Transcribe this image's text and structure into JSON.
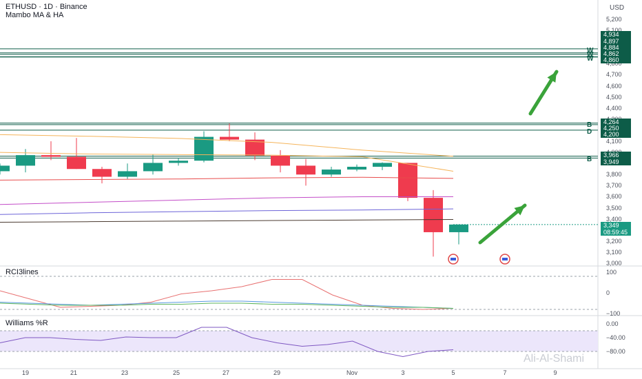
{
  "header": {
    "symbol_line": "ETHUSD · 1D · Binance",
    "indicator": "Mambo MA & HA",
    "currency": "USD"
  },
  "price_labels": [
    "5,200",
    "5,100",
    "5,000",
    "4,900",
    "4,800",
    "4,700",
    "4,600",
    "4,500",
    "4,400",
    "4,300",
    "4,100",
    "4,000",
    "3,800",
    "3,700",
    "3,600",
    "3,500",
    "3,400",
    "3,200",
    "3,100",
    "3,000"
  ],
  "level_tags": [
    "4,934",
    "4,897",
    "4,884",
    "4,862",
    "4,860",
    "4,264",
    "4,250",
    "4,200",
    "3,966",
    "3,949"
  ],
  "level_letters": [
    "W",
    "W",
    "W",
    "B",
    "D",
    "B"
  ],
  "current": {
    "price": "3,349",
    "countdown": "08:59:45"
  },
  "x_labels": [
    "19",
    "21",
    "23",
    "25",
    "27",
    "29",
    "Nov",
    "3",
    "5",
    "7",
    "9"
  ],
  "pane_titles": {
    "rci": "RCI3lines",
    "williams": "Williams %R"
  },
  "rci_labels": [
    "100",
    "0",
    "−100"
  ],
  "williams_labels": [
    "0.00",
    "−40.00",
    "−80.00"
  ],
  "watermark": "Ali-Al-Shami",
  "colors": {
    "up": "#1a9a82",
    "down": "#ef3b4e",
    "levels": "#0d5c48",
    "arrow": "#3aa33a"
  },
  "chart_data": {
    "type": "candlestick",
    "x": [
      "Oct 18",
      "Oct 19",
      "Oct 20",
      "Oct 21",
      "Oct 22",
      "Oct 23",
      "Oct 24",
      "Oct 25",
      "Oct 26",
      "Oct 27",
      "Oct 28",
      "Oct 29",
      "Oct 30",
      "Oct 31",
      "Nov 1",
      "Nov 2",
      "Nov 3",
      "Nov 4",
      "Nov 5"
    ],
    "ohlc": [
      [
        3830,
        3900,
        3800,
        3880
      ],
      [
        3880,
        4030,
        3820,
        3975
      ],
      [
        3975,
        4100,
        3930,
        3960
      ],
      [
        3960,
        4130,
        3850,
        3850
      ],
      [
        3850,
        3870,
        3720,
        3780
      ],
      [
        3780,
        3900,
        3760,
        3830
      ],
      [
        3830,
        3980,
        3800,
        3905
      ],
      [
        3905,
        3950,
        3880,
        3925
      ],
      [
        3925,
        4190,
        3910,
        4140
      ],
      [
        4140,
        4260,
        4100,
        4115
      ],
      [
        4115,
        4180,
        3930,
        3970
      ],
      [
        3970,
        4020,
        3820,
        3880
      ],
      [
        3880,
        3940,
        3700,
        3800
      ],
      [
        3800,
        3870,
        3780,
        3845
      ],
      [
        3845,
        3890,
        3830,
        3870
      ],
      [
        3870,
        3910,
        3840,
        3905
      ],
      [
        3905,
        3905,
        3560,
        3590
      ],
      [
        3590,
        3660,
        3060,
        3280
      ],
      [
        3280,
        3350,
        3170,
        3349
      ]
    ],
    "moving_averages": [
      {
        "color": "#f5b45a",
        "values": [
          4160,
          4145,
          4125,
          4090,
          4020,
          3965
        ]
      },
      {
        "color": "#f5b45a",
        "values": [
          4000,
          3985,
          3980,
          3975,
          3960,
          3830
        ]
      },
      {
        "color": "#e84c4c",
        "values": [
          3750,
          3755,
          3760,
          3770,
          3775,
          3765
        ]
      },
      {
        "color": "#c34cc8",
        "values": [
          3530,
          3550,
          3570,
          3590,
          3600,
          3600
        ]
      },
      {
        "color": "#6c63d8",
        "values": [
          3440,
          3455,
          3465,
          3475,
          3480,
          3490
        ]
      },
      {
        "color": "#4a3a30",
        "values": [
          3370,
          3375,
          3380,
          3385,
          3390,
          3395
        ]
      }
    ],
    "rci": {
      "range": [
        -100,
        100
      ],
      "lines": [
        {
          "color": "#e87070",
          "values": [
            10,
            -30,
            -70,
            -65,
            -60,
            -45,
            -5,
            10,
            30,
            65,
            65,
            -10,
            -60,
            -75,
            -80,
            -75
          ]
        },
        {
          "color": "#5a9ae0",
          "values": [
            -45,
            -50,
            -55,
            -60,
            -55,
            -50,
            -45,
            -40,
            -40,
            -45,
            -50,
            -55,
            -60,
            -65,
            -70,
            -75
          ]
        },
        {
          "color": "#5bb35b",
          "values": [
            -50,
            -55,
            -60,
            -60,
            -60,
            -55,
            -55,
            -50,
            -50,
            -55,
            -55,
            -60,
            -65,
            -70,
            -70,
            -75
          ]
        }
      ]
    },
    "williams": {
      "range": [
        -100,
        0
      ],
      "values": [
        -55,
        -40,
        -40,
        -45,
        -48,
        -38,
        -40,
        -40,
        -10,
        -10,
        -40,
        -55,
        -65,
        -60,
        -50,
        -80,
        -95,
        -80,
        -75
      ]
    },
    "price_range": [
      3000,
      5250
    ]
  }
}
